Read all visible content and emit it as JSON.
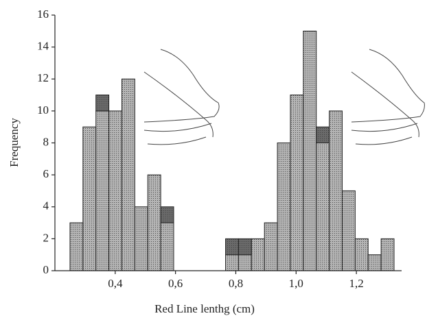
{
  "chart_data": {
    "type": "histogram",
    "xlabel": "Red Line lenthg (cm)",
    "ylabel": "Frequency",
    "bins": [
      0.25,
      0.293,
      0.336,
      0.379,
      0.422,
      0.465,
      0.508,
      0.551,
      0.594,
      0.637,
      0.68,
      0.723,
      0.766,
      0.809,
      0.852,
      0.895,
      0.938,
      0.981,
      1.024,
      1.067,
      1.11,
      1.153,
      1.196,
      1.239,
      1.282,
      1.325
    ],
    "series": [
      {
        "color": "#b4b4b4",
        "values": [
          3,
          9,
          10,
          10,
          12,
          4,
          6,
          3,
          0,
          0,
          0,
          0,
          1,
          1,
          2,
          3,
          8,
          11,
          15,
          8,
          10,
          5,
          2,
          1,
          2
        ]
      },
      {
        "color": "#6a6a6a",
        "values": [
          0,
          0,
          1,
          0,
          0,
          0,
          0,
          1,
          0,
          0,
          0,
          0,
          1,
          1,
          0,
          0,
          0,
          0,
          0,
          1,
          0,
          0,
          0,
          0,
          0
        ]
      }
    ],
    "stacked": true,
    "xlim": [
      0.2,
      1.35
    ],
    "xticks": [
      {
        "value": 0.4,
        "label": "0,4"
      },
      {
        "value": 0.6,
        "label": "0,6"
      },
      {
        "value": 0.8,
        "label": "0,8"
      },
      {
        "value": 1.0,
        "label": "1,0"
      },
      {
        "value": 1.2,
        "label": "1,2"
      }
    ],
    "ylim": [
      0,
      16
    ],
    "yticks": [
      0,
      2,
      4,
      6,
      8,
      10,
      12,
      14,
      16
    ]
  }
}
